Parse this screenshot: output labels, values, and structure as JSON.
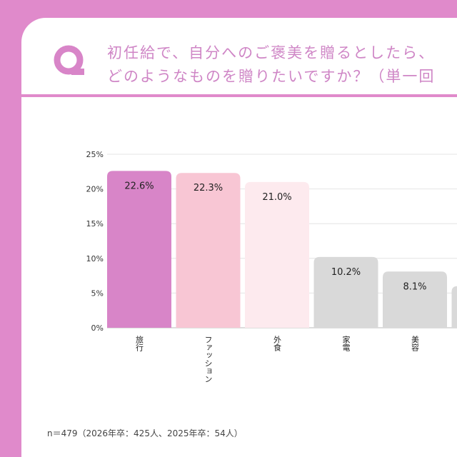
{
  "header": {
    "logo_letter": "Q",
    "title_line1": "初任給で、自分へのご褒美を贈るとしたら、",
    "title_line2": "どのようなものを贈りたいですか？（単一回"
  },
  "chart_data": {
    "type": "bar",
    "categories": [
      "旅行",
      "ファッション",
      "外食",
      "家電",
      "美容",
      ""
    ],
    "values": [
      22.6,
      22.3,
      21.0,
      10.2,
      8.1,
      6.0
    ],
    "data_labels": [
      "22.6%",
      "22.3%",
      "21.0%",
      "10.2%",
      "8.1%",
      ""
    ],
    "colors": [
      "#d885c8",
      "#f8c6d4",
      "#fdeaee",
      "#d9d9d9",
      "#d9d9d9",
      "#d9d9d9"
    ],
    "yticks": [
      "0%",
      "5%",
      "10%",
      "15%",
      "20%",
      "25%"
    ],
    "ylim": [
      0,
      25
    ],
    "grid": true,
    "title": "",
    "xlabel": "",
    "ylabel": ""
  },
  "footnote": "n＝479（2026年卒：425人、2025年卒：54人）",
  "colors": {
    "background": "#e08acb",
    "title": "#cf86c6"
  }
}
